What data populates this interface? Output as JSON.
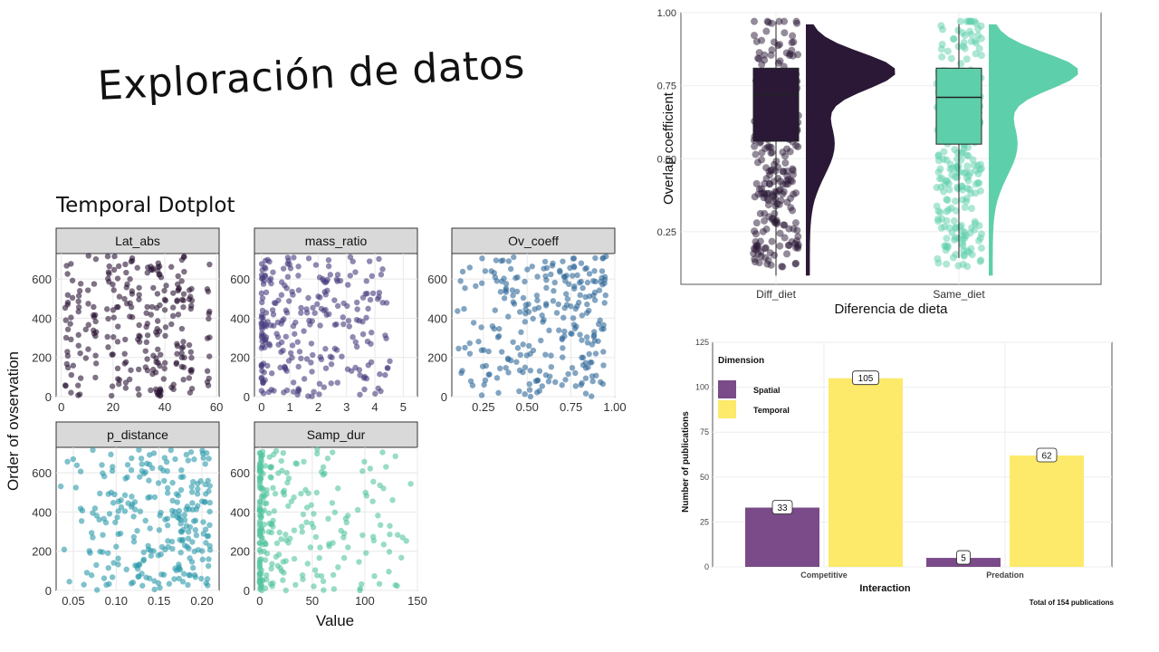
{
  "slide": {
    "title": "Exploración de datos",
    "subtitle": "Temporal Dotplot"
  },
  "chart_data": [
    {
      "type": "scatter",
      "title": "Temporal Dotplot",
      "xlabel": "Value",
      "ylabel": "Order of ovservation",
      "ylim": [
        0,
        730
      ],
      "yticks": [
        0,
        200,
        400,
        600
      ],
      "grid": true,
      "facets": [
        {
          "name": "Lat_abs",
          "xlim": [
            -2,
            61
          ],
          "xticks": [
            "0",
            "20",
            "40",
            "60"
          ],
          "xtick_values": [
            0,
            20,
            40,
            60
          ],
          "color": "#2a1433",
          "x_range": [
            1,
            59
          ],
          "clusters": [
            2,
            4,
            7,
            10,
            13,
            18,
            20,
            22,
            25,
            27,
            30,
            33,
            35,
            37,
            38,
            40,
            43,
            45,
            47,
            50,
            57
          ]
        },
        {
          "name": "mass_ratio",
          "xlim": [
            -0.25,
            5.5
          ],
          "xticks": [
            "0",
            "1",
            "2",
            "3",
            "4",
            "5"
          ],
          "xtick_values": [
            0,
            1,
            2,
            3,
            4,
            5
          ],
          "color": "#463b7d",
          "x_range": [
            0,
            4.6
          ],
          "skew": 1.8
        },
        {
          "name": "Ov_coeff",
          "xlim": [
            0.07,
            1.0
          ],
          "xticks": [
            "0.25",
            "0.50",
            "0.75",
            "1.00"
          ],
          "xtick_values": [
            0.25,
            0.5,
            0.75,
            1.0
          ],
          "color": "#31699a",
          "x_range": [
            0.1,
            0.95
          ],
          "skew": 0.7
        },
        {
          "name": "p_distance",
          "xlim": [
            0.03,
            0.22
          ],
          "xticks": [
            "0.05",
            "0.10",
            "0.15",
            "0.20"
          ],
          "xtick_values": [
            0.05,
            0.1,
            0.15,
            0.2
          ],
          "color": "#2b9aaa",
          "x_range": [
            0.035,
            0.21
          ],
          "skew": 0.6
        },
        {
          "name": "Samp_dur",
          "xlim": [
            -5,
            150
          ],
          "xticks": [
            "0",
            "50",
            "100",
            "150"
          ],
          "xtick_values": [
            0,
            50,
            100,
            150
          ],
          "color": "#53c59e",
          "x_range": [
            0,
            147
          ],
          "skew": 3.5
        }
      ]
    },
    {
      "type": "raincloud",
      "xlabel": "Diferencia de dieta",
      "ylabel": "Overlap coefficient",
      "ylim": [
        0.07,
        1.0
      ],
      "yticks": [
        "0.25",
        "0.50",
        "0.75",
        "1.00"
      ],
      "ytick_values": [
        0.25,
        0.5,
        0.75,
        1.0
      ],
      "categories": [
        "Diff_diet",
        "Same_diet"
      ],
      "series": [
        {
          "name": "Diff_diet",
          "color": "#2a1836",
          "box": {
            "q1": 0.56,
            "median": 0.72,
            "q3": 0.81,
            "min": 0.1,
            "max": 0.97
          },
          "density_peak": 0.8
        },
        {
          "name": "Same_diet",
          "color": "#5ecfab",
          "box": {
            "q1": 0.55,
            "median": 0.71,
            "q3": 0.81,
            "min": 0.16,
            "max": 0.96
          },
          "density_peak": 0.8
        }
      ]
    },
    {
      "type": "bar",
      "xlabel": "Interaction",
      "ylabel": "Number of publications",
      "ylim": [
        0,
        125
      ],
      "yticks": [
        "0",
        "25",
        "50",
        "75",
        "100",
        "125"
      ],
      "ytick_values": [
        0,
        25,
        50,
        75,
        100,
        125
      ],
      "categories": [
        "Competitive",
        "Predation"
      ],
      "legend_title": "Dimension",
      "series": [
        {
          "name": "Spatial",
          "color": "#7a4b88",
          "values": [
            33,
            5
          ]
        },
        {
          "name": "Temporal",
          "color": "#fde96a",
          "values": [
            105,
            62
          ]
        }
      ],
      "value_labels": [
        [
          "33",
          "5"
        ],
        [
          "105",
          "62"
        ]
      ],
      "caption": "Total of  154 publications"
    }
  ]
}
